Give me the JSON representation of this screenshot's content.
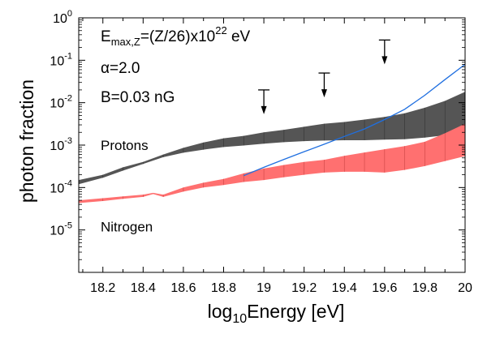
{
  "chart_data": {
    "type": "area",
    "xlabel_prefix": "log",
    "xlabel_sub": "10",
    "xlabel_suffix": "Energy [eV]",
    "ylabel": "photon fraction",
    "xlim": [
      18.08,
      20.0
    ],
    "ylim_log10": [
      -6,
      0
    ],
    "y_scale": "log",
    "grid": false,
    "x_ticks": [
      "18.2",
      "18.4",
      "18.6",
      "18.8",
      "19",
      "19.2",
      "19.4",
      "19.6",
      "19.8",
      "20"
    ],
    "x_tick_values": [
      18.2,
      18.4,
      18.6,
      18.8,
      19.0,
      19.2,
      19.4,
      19.6,
      19.8,
      20.0
    ],
    "y_ticks": [
      {
        "base": "10",
        "exp": "0",
        "value": 1
      },
      {
        "base": "10",
        "exp": "-1",
        "value": 0.1
      },
      {
        "base": "10",
        "exp": "-2",
        "value": 0.01
      },
      {
        "base": "10",
        "exp": "-3",
        "value": 0.001
      },
      {
        "base": "10",
        "exp": "-4",
        "value": 0.0001
      },
      {
        "base": "10",
        "exp": "-5",
        "value": 1e-05
      }
    ],
    "annotations": {
      "line1_main": "E",
      "line1_sub": "max,Z",
      "line1_mid": "=(Z/26)x10",
      "line1_sup": "22",
      "line1_end": " eV",
      "line2": "α=2.0",
      "line3": "B=0.03 nG"
    },
    "series": [
      {
        "name": "Protons",
        "color": "#555555",
        "x": [
          18.08,
          18.2,
          18.3,
          18.4,
          18.5,
          18.6,
          18.7,
          18.8,
          18.9,
          19.0,
          19.1,
          19.2,
          19.3,
          19.4,
          19.5,
          19.6,
          19.7,
          19.8,
          19.9,
          20.0
        ],
        "lower": [
          0.00012,
          0.00017,
          0.00025,
          0.00036,
          0.00052,
          0.00066,
          0.00078,
          0.0009,
          0.00098,
          0.00108,
          0.00117,
          0.00124,
          0.00128,
          0.0013,
          0.0013,
          0.00135,
          0.00138,
          0.0015,
          0.0017,
          0.0019
        ],
        "upper": [
          0.00015,
          0.0002,
          0.0003,
          0.0004,
          0.0006,
          0.00086,
          0.00115,
          0.00145,
          0.00165,
          0.002,
          0.0023,
          0.0027,
          0.0032,
          0.0035,
          0.004,
          0.0046,
          0.0056,
          0.0076,
          0.011,
          0.018
        ]
      },
      {
        "name": "Nitrogen",
        "color": "#ff7070",
        "x": [
          18.08,
          18.2,
          18.3,
          18.4,
          18.45,
          18.5,
          18.6,
          18.7,
          18.8,
          18.9,
          19.0,
          19.1,
          19.2,
          19.3,
          19.4,
          19.5,
          19.6,
          19.7,
          19.8,
          19.9,
          20.0
        ],
        "lower": [
          4.3e-05,
          4.8e-05,
          5.4e-05,
          6e-05,
          7e-05,
          6e-05,
          8e-05,
          0.0001,
          0.000115,
          0.000135,
          0.00015,
          0.000175,
          0.0002,
          0.000225,
          0.000235,
          0.000235,
          0.000225,
          0.00026,
          0.00032,
          0.00042,
          0.00055
        ],
        "upper": [
          5e-05,
          5.6e-05,
          6.2e-05,
          6.8e-05,
          7.5e-05,
          6.8e-05,
          0.0001,
          0.00013,
          0.00016,
          0.000215,
          0.00028,
          0.00034,
          0.0004,
          0.00045,
          0.00056,
          0.00067,
          0.0008,
          0.00095,
          0.0012,
          0.0019,
          0.0032
        ]
      },
      {
        "name": "",
        "color": "#1f6fe0",
        "x": [
          18.9,
          19.0,
          19.1,
          19.2,
          19.3,
          19.4,
          19.5,
          19.6,
          19.7,
          19.8,
          19.9,
          20.0
        ],
        "y": [
          0.00019,
          0.0003,
          0.00046,
          0.0007,
          0.00105,
          0.0016,
          0.0024,
          0.004,
          0.007,
          0.015,
          0.035,
          0.08
        ]
      }
    ],
    "band_labels": [
      {
        "text": "Protons",
        "x": 18.2,
        "y": 0.001
      },
      {
        "text": "Nitrogen",
        "x": 18.2,
        "y": 1.2e-05
      }
    ],
    "upper_limits": [
      {
        "x": 19.0,
        "y": 0.02
      },
      {
        "x": 19.3,
        "y": 0.05
      },
      {
        "x": 19.6,
        "y": 0.3
      }
    ]
  }
}
